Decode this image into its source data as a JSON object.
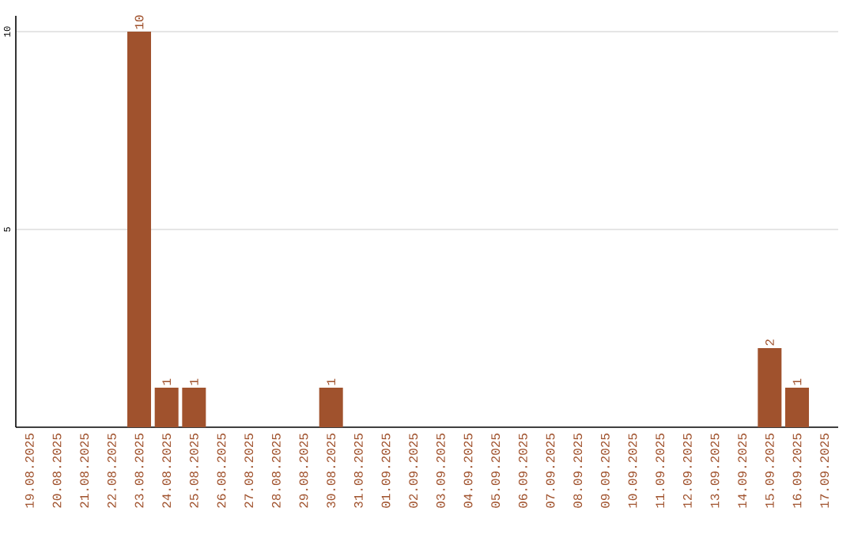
{
  "chart_data": {
    "type": "bar",
    "categories": [
      "19.08.2025",
      "20.08.2025",
      "21.08.2025",
      "22.08.2025",
      "23.08.2025",
      "24.08.2025",
      "25.08.2025",
      "26.08.2025",
      "27.08.2025",
      "28.08.2025",
      "29.08.2025",
      "30.08.2025",
      "31.08.2025",
      "01.09.2025",
      "02.09.2025",
      "03.09.2025",
      "04.09.2025",
      "05.09.2025",
      "06.09.2025",
      "07.09.2025",
      "08.09.2025",
      "09.09.2025",
      "10.09.2025",
      "11.09.2025",
      "12.09.2025",
      "13.09.2025",
      "14.09.2025",
      "15.09.2025",
      "16.09.2025",
      "17.09.2025"
    ],
    "values": [
      0,
      0,
      0,
      0,
      10,
      1,
      1,
      0,
      0,
      0,
      0,
      1,
      0,
      0,
      0,
      0,
      0,
      0,
      0,
      0,
      0,
      0,
      0,
      0,
      0,
      0,
      0,
      2,
      1,
      0
    ],
    "value_labels": [
      null,
      null,
      null,
      null,
      "10",
      "1",
      "1",
      null,
      null,
      null,
      null,
      "1",
      null,
      null,
      null,
      null,
      null,
      null,
      null,
      null,
      null,
      null,
      null,
      null,
      null,
      null,
      null,
      "2",
      "1",
      null
    ],
    "color": "#a0522d",
    "ylim": [
      0,
      10.4
    ],
    "yticks": [
      5,
      10
    ],
    "grid": "y"
  }
}
